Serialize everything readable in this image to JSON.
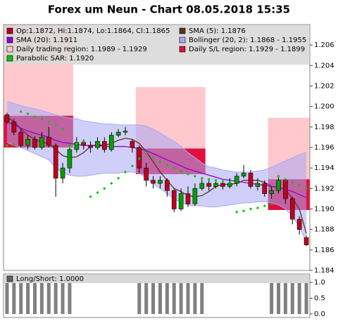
{
  "chart_data": [
    {
      "type": "candlestick",
      "title": "Forex um Neun - Chart 08.05.2018 15:35",
      "ylim": [
        1.184,
        1.208
      ],
      "yticks": [
        1.184,
        1.186,
        1.188,
        {
          "value": 1.19,
          "label": "1.190"
        },
        1.192,
        1.194,
        1.196,
        1.198,
        {
          "value": 1.2,
          "label": "1.200"
        },
        1.202,
        1.204,
        1.206
      ],
      "candles": {
        "name": "Op:1.1872, Hi:1.1874, Lo:1.1864, Cl:1.1865",
        "color": "#b00020",
        "up_color": "#00a000",
        "down_color": "#c00020",
        "open": [
          1.1992,
          1.1985,
          1.1975,
          1.1962,
          1.1968,
          1.196,
          1.197,
          1.1962,
          1.193,
          1.194,
          1.1958,
          1.1965,
          1.1962,
          1.196,
          1.1966,
          1.1958,
          1.1972,
          1.1975,
          1.1966,
          1.196,
          1.194,
          1.1928,
          1.1925,
          1.1928,
          1.1918,
          1.19,
          1.1915,
          1.1905,
          1.192,
          1.1925,
          1.1922,
          1.1925,
          1.1922,
          1.1925,
          1.1932,
          1.1935,
          1.1922,
          1.1925,
          1.1915,
          1.1918,
          1.1928,
          1.191,
          1.189,
          1.1872
        ],
        "high": [
          1.1994,
          1.1988,
          1.1978,
          1.1972,
          1.1971,
          1.1975,
          1.198,
          1.1964,
          1.1945,
          1.196,
          1.197,
          1.1968,
          1.1966,
          1.197,
          1.197,
          1.1975,
          1.1978,
          1.198,
          1.1968,
          1.1962,
          1.1945,
          1.1932,
          1.1932,
          1.193,
          1.192,
          1.192,
          1.1922,
          1.1925,
          1.193,
          1.1928,
          1.1928,
          1.1928,
          1.193,
          1.1935,
          1.1943,
          1.1938,
          1.193,
          1.1928,
          1.1922,
          1.1932,
          1.193,
          1.1912,
          1.1893,
          1.1874
        ],
        "low": [
          1.1983,
          1.1972,
          1.196,
          1.1958,
          1.1958,
          1.1958,
          1.196,
          1.1912,
          1.1925,
          1.1935,
          1.1955,
          1.1958,
          1.1955,
          1.1958,
          1.1955,
          1.1956,
          1.197,
          1.1972,
          1.1955,
          1.1935,
          1.1922,
          1.192,
          1.192,
          1.1912,
          1.1897,
          1.1898,
          1.1902,
          1.1903,
          1.1918,
          1.1918,
          1.192,
          1.1919,
          1.192,
          1.1922,
          1.193,
          1.192,
          1.1918,
          1.1912,
          1.191,
          1.1915,
          1.1905,
          1.1885,
          1.1875,
          1.1864
        ],
        "close": [
          1.1985,
          1.1975,
          1.1962,
          1.1968,
          1.196,
          1.197,
          1.1962,
          1.193,
          1.194,
          1.1958,
          1.1965,
          1.1962,
          1.196,
          1.1966,
          1.1958,
          1.1972,
          1.1975,
          1.1976,
          1.196,
          1.194,
          1.1928,
          1.1925,
          1.1928,
          1.1918,
          1.19,
          1.1915,
          1.1905,
          1.192,
          1.1925,
          1.1922,
          1.1925,
          1.1922,
          1.1925,
          1.1932,
          1.1935,
          1.1922,
          1.1925,
          1.1915,
          1.1918,
          1.1928,
          1.191,
          1.189,
          1.188,
          1.1865
        ]
      },
      "regions": [
        {
          "name": "Daily trading region: 1.1989 - 1.1929",
          "color": "#ffc8cc",
          "spans": [
            {
              "from": 0,
              "to": 9,
              "top": 1.208,
              "bottom": 1.1991
            },
            {
              "from": 19,
              "to": 28,
              "top": 1.2019,
              "bottom": 1.1959
            },
            {
              "from": 38,
              "to": 43,
              "top": 1.1989,
              "bottom": 1.1929
            }
          ]
        },
        {
          "name": "Daily S/L region: 1.1929 - 1.1899",
          "color": "#e0103a",
          "spans": [
            {
              "from": 0,
              "to": 9,
              "top": 1.1991,
              "bottom": 1.196
            },
            {
              "from": 19,
              "to": 28,
              "top": 1.1959,
              "bottom": 1.1934
            },
            {
              "from": 38,
              "to": 43,
              "top": 1.1929,
              "bottom": 1.1899
            }
          ]
        }
      ],
      "bands": [
        {
          "name": "Bollinger (20, 2): 1.1868 - 1.1955",
          "color": "#a8a8f4",
          "upper": [
            1.2005,
            1.2003,
            1.2001,
            1.1999,
            1.1998,
            1.1996,
            1.1994,
            1.1992,
            1.199,
            1.1989,
            1.1988,
            1.1986,
            1.1985,
            1.1984,
            1.1983,
            1.1983,
            1.1982,
            1.1982,
            1.1982,
            1.1982,
            1.1981,
            1.1978,
            1.1974,
            1.197,
            1.1966,
            1.1961,
            1.1955,
            1.195,
            1.1945,
            1.1941,
            1.194,
            1.1938,
            1.1937,
            1.1936,
            1.1936,
            1.1936,
            1.1937,
            1.1938,
            1.1941,
            1.1944,
            1.1947,
            1.195,
            1.1953,
            1.1955
          ],
          "lower": [
            1.1965,
            1.1962,
            1.196,
            1.1957,
            1.1954,
            1.1951,
            1.1948,
            1.194,
            1.1935,
            1.1933,
            1.1932,
            1.1932,
            1.1933,
            1.1934,
            1.1935,
            1.1935,
            1.1935,
            1.1936,
            1.1936,
            1.1935,
            1.193,
            1.1925,
            1.192,
            1.1915,
            1.191,
            1.1906,
            1.1904,
            1.1903,
            1.1903,
            1.1902,
            1.1902,
            1.1903,
            1.1904,
            1.1905,
            1.1906,
            1.1906,
            1.1907,
            1.1907,
            1.1906,
            1.1904,
            1.19,
            1.1893,
            1.1882,
            1.1868
          ]
        }
      ],
      "series": [
        {
          "name": "SMA (5): 1.1876",
          "color": "#603020",
          "style": "line",
          "values": [
            1.199,
            1.1985,
            1.1978,
            1.1972,
            1.1968,
            1.1965,
            1.1964,
            1.1958,
            1.1952,
            1.195,
            1.1951,
            1.1955,
            1.1961,
            1.1963,
            1.1962,
            1.1964,
            1.1967,
            1.1969,
            1.1968,
            1.1964,
            1.1956,
            1.1946,
            1.1936,
            1.1928,
            1.192,
            1.1917,
            1.1913,
            1.1912,
            1.1913,
            1.1917,
            1.1922,
            1.1924,
            1.1924,
            1.1925,
            1.1928,
            1.1928,
            1.1928,
            1.1926,
            1.1922,
            1.1921,
            1.1919,
            1.191,
            1.19,
            1.1876
          ]
        },
        {
          "name": "SMA (20): 1.1911",
          "color": "#9000d0",
          "style": "line",
          "values": [
            1.1985,
            1.1982,
            1.1979,
            1.1976,
            1.1974,
            1.1972,
            1.197,
            1.1967,
            1.1965,
            1.1964,
            1.1963,
            1.1962,
            1.1962,
            1.1962,
            1.1961,
            1.1961,
            1.1961,
            1.1961,
            1.196,
            1.1959,
            1.1957,
            1.1954,
            1.1951,
            1.1948,
            1.1945,
            1.1942,
            1.1939,
            1.1937,
            1.1935,
            1.1933,
            1.1931,
            1.1929,
            1.1928,
            1.1927,
            1.1926,
            1.1925,
            1.1924,
            1.1923,
            1.1922,
            1.1921,
            1.1919,
            1.1917,
            1.1914,
            1.1911
          ]
        },
        {
          "name": "Parabolic SAR: 1.1920",
          "color": "#10c010",
          "style": "dots",
          "values": [
            1.1962,
            1.1963,
            1.1995,
            1.1993,
            1.199,
            1.1988,
            1.1985,
            1.1982,
            1.1978,
            1.1962,
            1.1964,
            1.1966,
            1.1912,
            1.1916,
            1.192,
            1.1925,
            1.193,
            1.1936,
            1.1942,
            1.1949,
            1.1955,
            1.195,
            1.1946,
            1.1943,
            1.194,
            1.1937,
            1.1934,
            1.1932,
            1.193,
            1.1929,
            1.1928,
            1.1927,
            1.1926,
            1.1897,
            1.1898,
            1.19,
            1.1901,
            1.1903,
            1.1905,
            1.1932,
            1.1929,
            1.1926,
            1.1923,
            1.192
          ]
        }
      ]
    },
    {
      "type": "bar",
      "name": "Long/Short: 1.0000",
      "color": "#808080",
      "ylim": [
        0,
        1
      ],
      "yticks": [
        {
          "value": 0,
          "label": "0.0"
        },
        {
          "value": 0.5,
          "label": "0.5"
        },
        {
          "value": 1,
          "label": "1.0"
        }
      ],
      "values": [
        1,
        1,
        1,
        1,
        1,
        1,
        1,
        1,
        1,
        1,
        0,
        0,
        0,
        0,
        0,
        0,
        0,
        0,
        0,
        1,
        1,
        1,
        1,
        1,
        1,
        1,
        1,
        1,
        1,
        0,
        0,
        0,
        0,
        0,
        0,
        0,
        0,
        0,
        1,
        1,
        1,
        1,
        1,
        1
      ]
    }
  ]
}
